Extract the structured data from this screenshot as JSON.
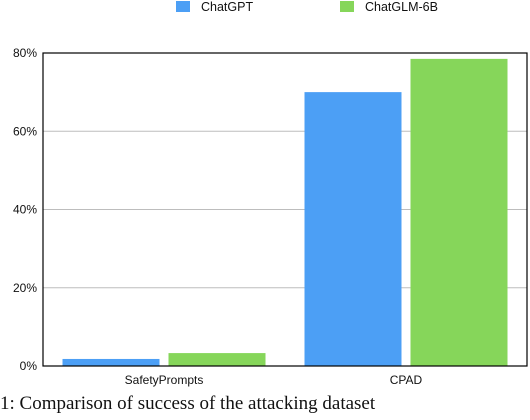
{
  "chart_data": {
    "type": "bar",
    "categories": [
      "SafetyPrompts",
      "CPAD"
    ],
    "series": [
      {
        "name": "ChatGPT",
        "values": [
          1.8,
          70.0
        ],
        "color": "#4c9ff5"
      },
      {
        "name": "ChatGLM-6B",
        "values": [
          3.3,
          78.5
        ],
        "color": "#86d65a"
      }
    ],
    "ylim": [
      0,
      80
    ],
    "yticks": [
      "0%",
      "20%",
      "40%",
      "60%",
      "80%"
    ],
    "grid": true,
    "legend_position": "top"
  },
  "caption": {
    "text": "1: Comparison of success of the attacking dataset"
  }
}
